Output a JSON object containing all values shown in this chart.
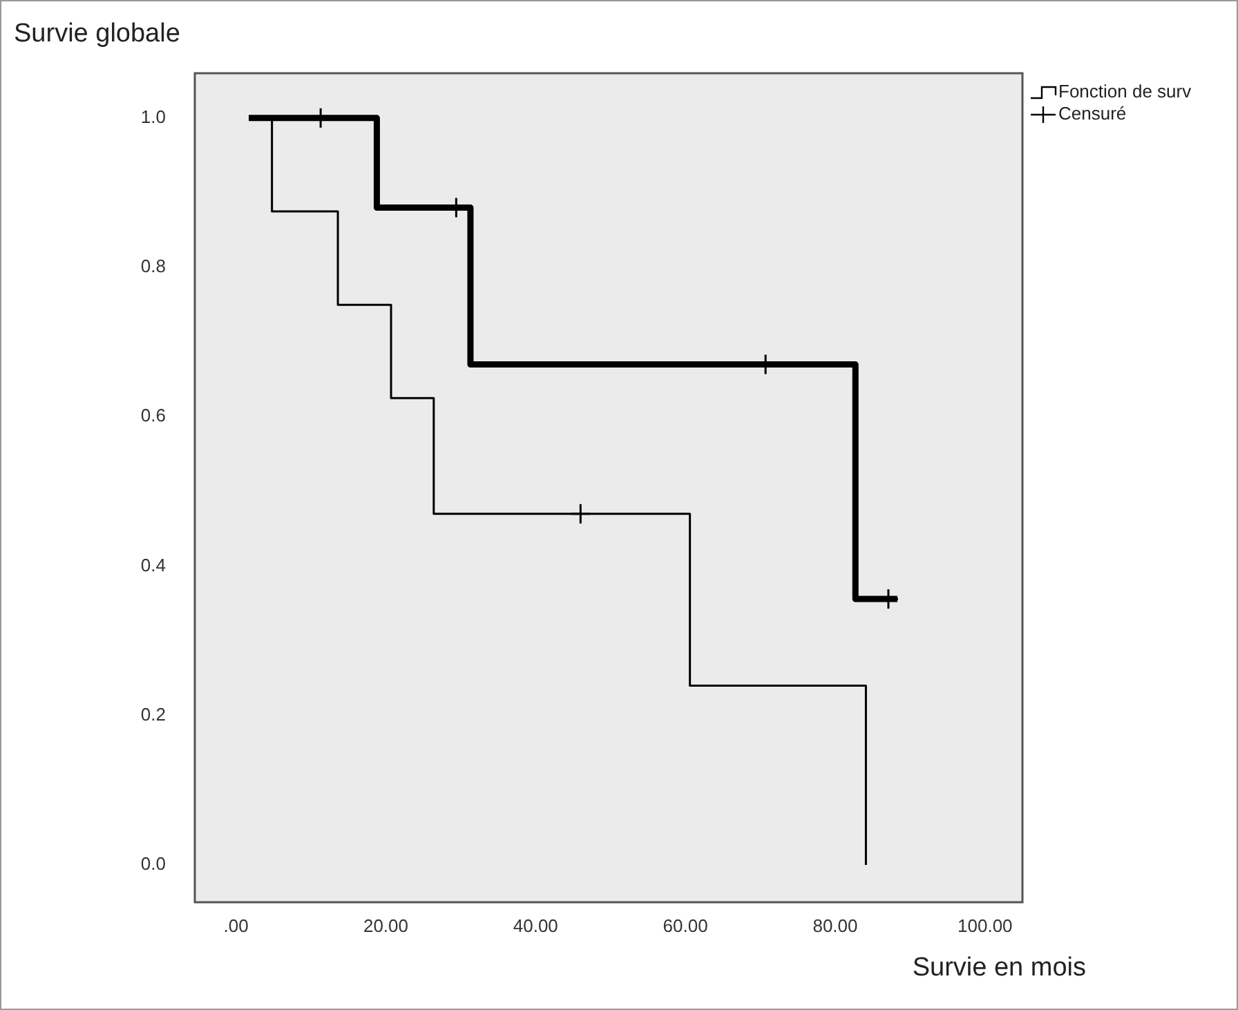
{
  "chart_data": {
    "type": "step",
    "title": "Survie globale",
    "xlabel": "Survie en mois",
    "xlim": [
      -5.5,
      105
    ],
    "xticks": [
      {
        "value": 0,
        "label": ".00"
      },
      {
        "value": 20,
        "label": "20.00"
      },
      {
        "value": 40,
        "label": "40.00"
      },
      {
        "value": 60,
        "label": "60.00"
      },
      {
        "value": 80,
        "label": "80.00"
      },
      {
        "value": 100,
        "label": "100.00"
      }
    ],
    "ylim": [
      -0.05,
      1.06
    ],
    "yticks": [
      {
        "value": 0,
        "label": "0.0"
      },
      {
        "value": 0.2,
        "label": "0.2"
      },
      {
        "value": 0.4,
        "label": "0.4"
      },
      {
        "value": 0.6,
        "label": "0.6"
      },
      {
        "value": 0.8,
        "label": "0.8"
      },
      {
        "value": 1,
        "label": "1.0"
      }
    ],
    "grid": false,
    "legend": "top right",
    "line_style": "solid",
    "marker": "cross",
    "series": [
      {
        "name": "Fonction de surv",
        "marker": "none",
        "color": "#000000",
        "x": [
          1.7,
          4.8,
          13.6,
          20.7,
          26.4,
          60.6,
          84.1
        ],
        "values": [
          1,
          0.875,
          0.75,
          0.625,
          0.47,
          0.24,
          0
        ]
      },
      {
        "marker": "none",
        "color": "#000000",
        "x": [
          1.7,
          18.8,
          31.3,
          82.7,
          88.3
        ],
        "values": [
          1,
          0.88,
          0.67,
          0.356,
          0.356
        ]
      },
      {
        "name": "Censuré",
        "type": "scatter",
        "color": "#000000",
        "x": [
          46,
          11.3,
          29.4,
          70.7,
          87.1
        ],
        "values": [
          0.47,
          1,
          0.88,
          0.67,
          0.356
        ]
      }
    ]
  }
}
